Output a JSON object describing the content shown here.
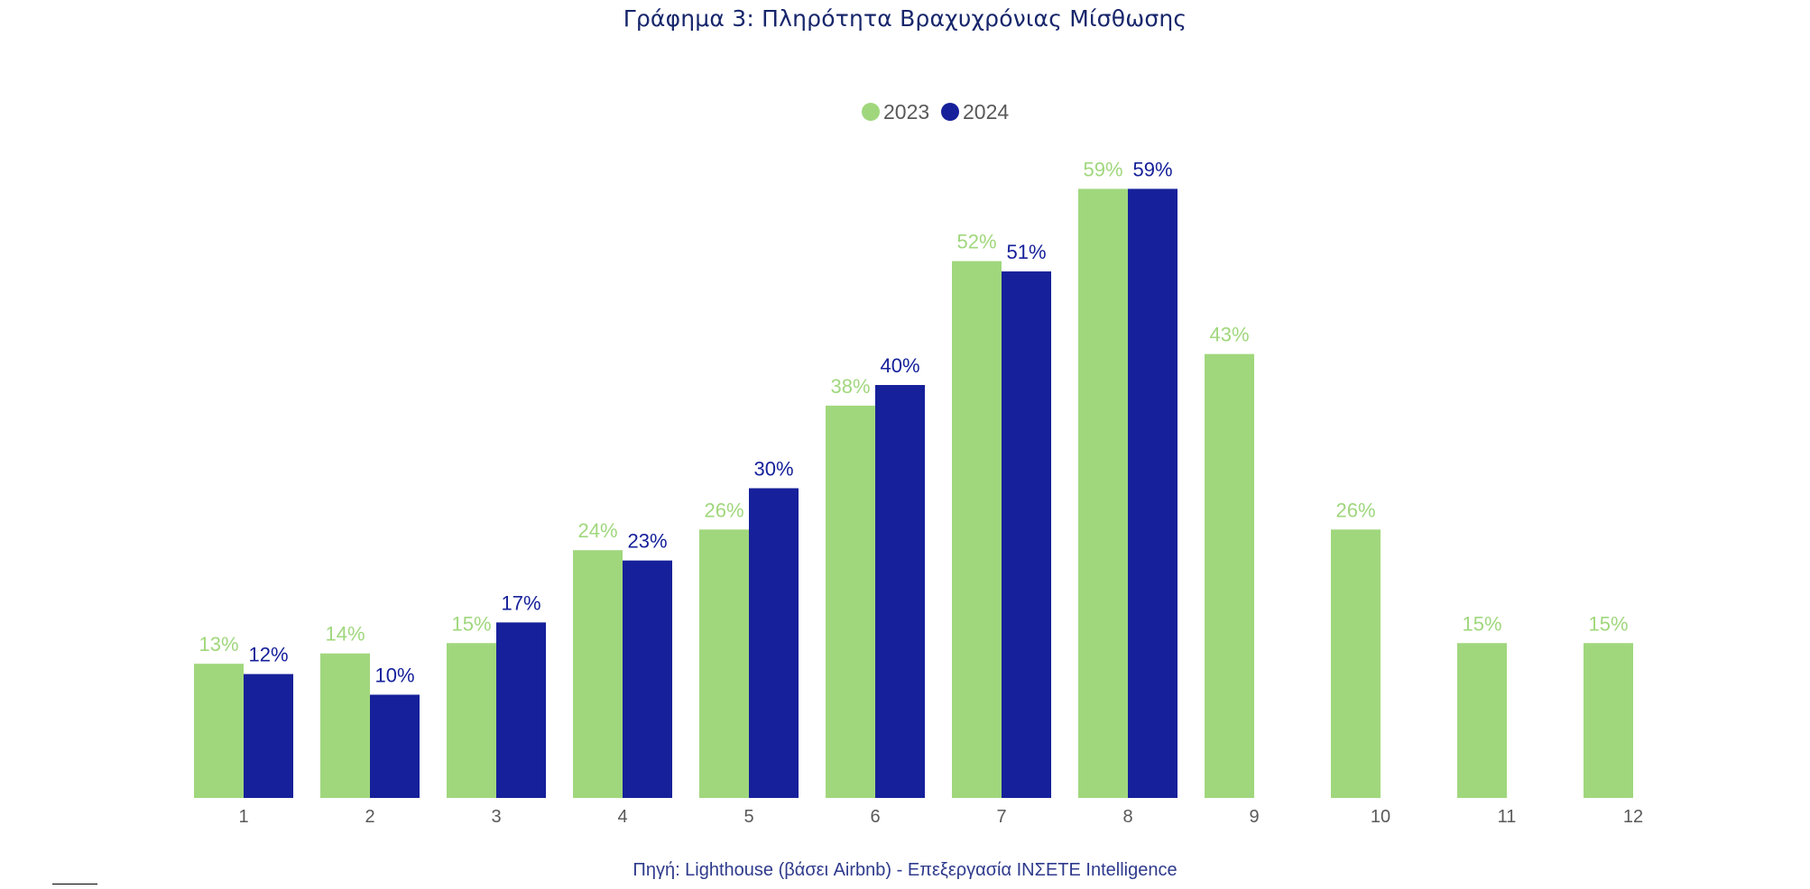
{
  "title": "Γράφημα 3: Πληρότητα Βραχυχρόνιας Μίσθωσης",
  "source": "Πηγή: Lighthouse (βάσει Airbnb) - Επεξεργασία ΙΝΣΕΤΕ Intelligence",
  "chart_data": {
    "type": "bar",
    "title": "Γράφημα 3: Πληρότητα Βραχυχρόνιας Μίσθωσης",
    "xlabel": "",
    "ylabel": "",
    "categories": [
      "1",
      "2",
      "3",
      "4",
      "5",
      "6",
      "7",
      "8",
      "9",
      "10",
      "11",
      "12"
    ],
    "series": [
      {
        "name": "2023",
        "color": "#a0d77d",
        "values": [
          13,
          14,
          15,
          24,
          26,
          38,
          52,
          59,
          43,
          26,
          15,
          15
        ],
        "labels": [
          "13%",
          "14%",
          "15%",
          "24%",
          "26%",
          "38%",
          "52%",
          "59%",
          "43%",
          "26%",
          "15%",
          "15%"
        ]
      },
      {
        "name": "2024",
        "color": "#16209a",
        "values": [
          12,
          10,
          17,
          23,
          30,
          40,
          51,
          59,
          null,
          null,
          null,
          null
        ],
        "labels": [
          "12%",
          "10%",
          "17%",
          "23%",
          "30%",
          "40%",
          "51%",
          "59%",
          "",
          "",
          "",
          ""
        ]
      }
    ],
    "ylim": [
      0,
      60
    ],
    "grid": false,
    "legend": "top-center",
    "tick_color": "#595959"
  }
}
